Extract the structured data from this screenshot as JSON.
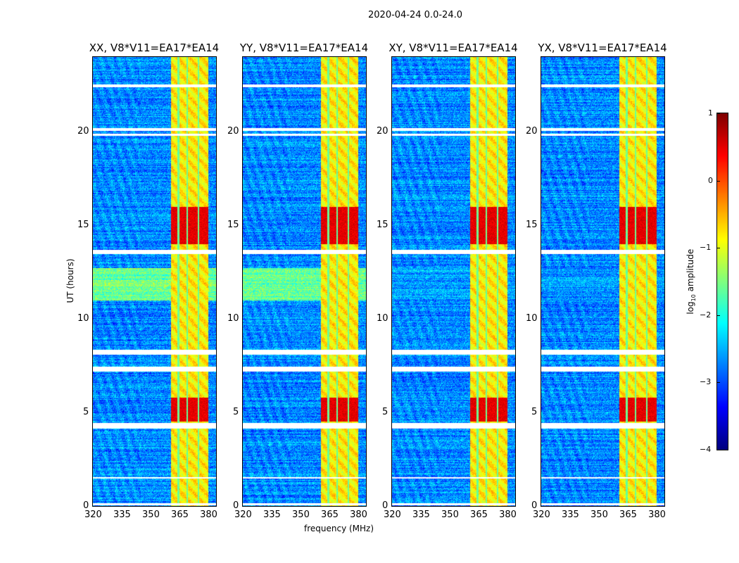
{
  "suptitle": "2020-04-24 0.0-24.0",
  "chart_data": {
    "type": "heatmap",
    "xlabel": "frequency (MHz)",
    "ylabel": "UT (hours)",
    "xlim": [
      320,
      384
    ],
    "ylim": [
      0,
      24
    ],
    "xticks": [
      320,
      335,
      350,
      365,
      380
    ],
    "yticks": [
      0,
      5,
      10,
      15,
      20
    ],
    "panels": [
      {
        "title": "XX, V8*V11=EA17*EA14",
        "quiet_period_level": -1.6
      },
      {
        "title": "YY, V8*V11=EA17*EA14",
        "quiet_period_level": -1.6
      },
      {
        "title": "XY, V8*V11=EA17*EA14",
        "quiet_period_level": -2.6
      },
      {
        "title": "YX, V8*V11=EA17*EA14",
        "quiet_period_level": -2.6
      }
    ],
    "background_level": -2.7,
    "rfi_band_mhz": [
      360.5,
      380
    ],
    "rfi_band_level": -0.8,
    "rfi_gaps_mhz": [
      364.5,
      369,
      374.8
    ],
    "hot_periods_ut": [
      [
        14.0,
        16.0
      ],
      [
        4.5,
        5.8
      ]
    ],
    "hot_level": 0.5,
    "quiet_period_ut": [
      11.0,
      12.7
    ],
    "flagged_ut": [
      [
        22.4,
        22.55
      ],
      [
        20.05,
        20.2
      ],
      [
        19.8,
        19.9
      ],
      [
        13.45,
        13.7
      ],
      [
        8.1,
        8.35
      ],
      [
        7.2,
        7.45
      ],
      [
        4.15,
        4.45
      ],
      [
        1.45,
        1.55
      ],
      [
        0.05,
        0.15
      ]
    ],
    "colorbar": {
      "label": "log10 amplitude",
      "label_base": "log",
      "label_sub": "10",
      "label_rest": " amplitude",
      "range": [
        -4,
        1
      ],
      "ticks": [
        -4,
        -3,
        -2,
        -1,
        0,
        1
      ],
      "tick_labels": [
        "−4",
        "−3",
        "−2",
        "−1",
        "0",
        "1"
      ],
      "colormap": "jet"
    }
  }
}
